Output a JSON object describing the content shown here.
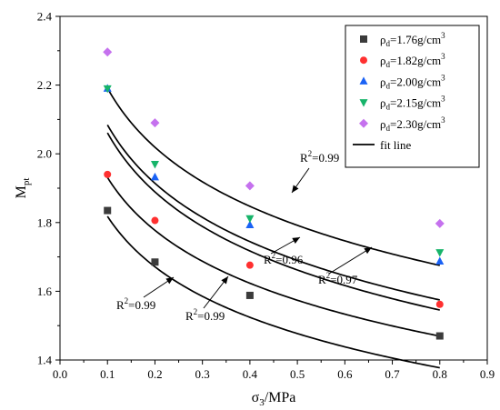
{
  "chart_data": {
    "type": "scatter",
    "xlabel": "σ3/MPa",
    "ylabel": "Mpt",
    "xlim": [
      0.0,
      0.9
    ],
    "ylim": [
      1.4,
      2.4
    ],
    "xticks": [
      0.0,
      0.1,
      0.2,
      0.3,
      0.4,
      0.5,
      0.6,
      0.7,
      0.8,
      0.9
    ],
    "yticks": [
      1.4,
      1.6,
      1.8,
      2.0,
      2.2,
      2.4
    ],
    "x_tick_labels": [
      "0.0",
      "0.1",
      "0.2",
      "0.3",
      "0.4",
      "0.5",
      "0.6",
      "0.7",
      "0.8",
      "0.9"
    ],
    "y_tick_labels": [
      "1.4",
      "1.6",
      "1.8",
      "2.0",
      "2.2",
      "2.4"
    ],
    "grid": false,
    "legend_position": "top-right",
    "series": [
      {
        "name": "ρd=1.76g/cm3",
        "marker": "square",
        "color": "#3b3b3b",
        "x": [
          0.1,
          0.2,
          0.4,
          0.8
        ],
        "y": [
          1.835,
          1.685,
          1.588,
          1.47
        ],
        "fit": {
          "a": 1.33,
          "b": 0.212
        },
        "r2_label": "R2=0.99"
      },
      {
        "name": "ρd=1.82g/cm3",
        "marker": "circle",
        "color": "#ff3030",
        "x": [
          0.1,
          0.2,
          0.4,
          0.8
        ],
        "y": [
          1.94,
          1.806,
          1.676,
          1.562
        ],
        "fit": {
          "a": 1.42,
          "b": 0.222
        },
        "r2_label": "R2=0.99"
      },
      {
        "name": "ρd=2.00g/cm3",
        "marker": "triangle-up",
        "color": "#1a62f5",
        "x": [
          0.1,
          0.2,
          0.4,
          0.8
        ],
        "y": [
          2.19,
          1.932,
          1.793,
          1.687
        ],
        "fit": {
          "a": 1.49,
          "b": 0.248
        },
        "r2_label": "R2=0.96"
      },
      {
        "name": "ρd=2.15g/cm3",
        "marker": "triangle-down",
        "color": "#17b46a",
        "x": [
          0.1,
          0.2,
          0.4,
          0.8
        ],
        "y": [
          2.19,
          1.97,
          1.812,
          1.713
        ],
        "fit": {
          "a": 1.52,
          "b": 0.245
        },
        "r2_label": "R2=0.97"
      },
      {
        "name": "ρd=2.30g/cm3",
        "marker": "diamond",
        "color": "#c571ee",
        "x": [
          0.1,
          0.2,
          0.4,
          0.8
        ],
        "y": [
          2.296,
          2.09,
          1.907,
          1.797
        ],
        "fit": {
          "a": 1.62,
          "b": 0.248
        },
        "r2_label": "R2=0.99"
      }
    ],
    "legend_fit_label": "fit line"
  }
}
